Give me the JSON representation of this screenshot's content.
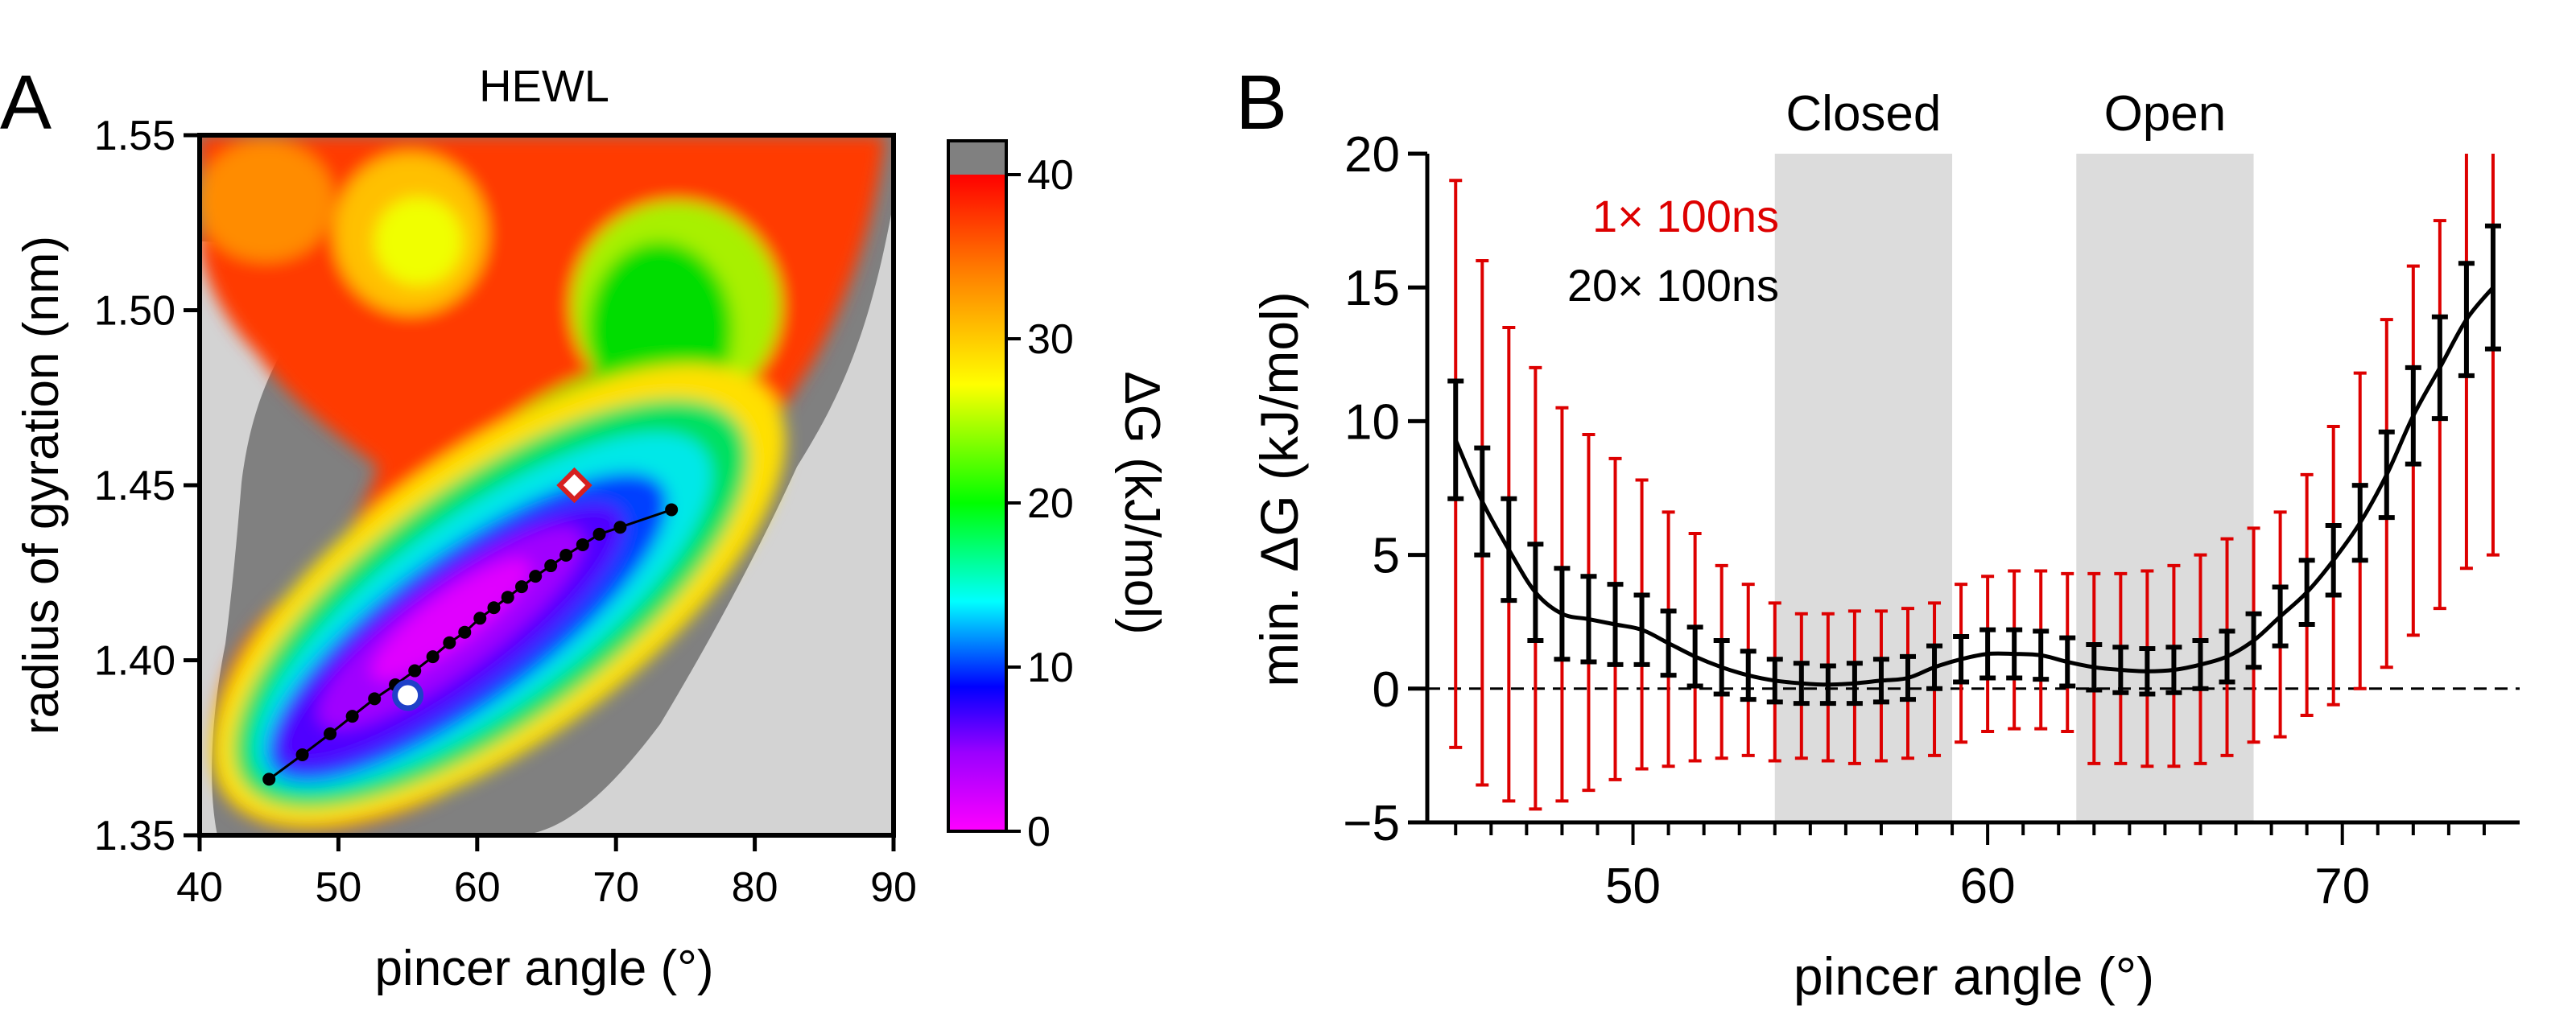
{
  "chart_data": [
    {
      "panel": "A",
      "type": "heatmap",
      "title": "HEWL",
      "xlabel": "pincer angle (°)",
      "ylabel": "radius of gyration (nm)",
      "xlim": [
        40,
        90
      ],
      "ylim": [
        1.35,
        1.55
      ],
      "xticks": [
        40,
        50,
        60,
        70,
        80,
        90
      ],
      "yticks": [
        1.35,
        1.4,
        1.45,
        1.5,
        1.55
      ],
      "ytick_labels": [
        "1.35",
        "1.40",
        "1.45",
        "1.50",
        "1.55"
      ],
      "colorbar": {
        "label": "ΔG (kJ/mol)",
        "min": 0,
        "max": 40,
        "ticks": [
          0,
          10,
          20,
          30,
          40
        ],
        "overflow_color": "#808080",
        "unsampled_color": "#d3d3d3"
      },
      "path": {
        "x": [
          45,
          47.4,
          49.4,
          51,
          52.6,
          54.1,
          55.5,
          56.8,
          58,
          59.1,
          60.2,
          61.2,
          62.2,
          63.2,
          64.2,
          65.3,
          66.4,
          67.6,
          68.8,
          70.3,
          74
        ],
        "y": [
          1.366,
          1.373,
          1.379,
          1.384,
          1.389,
          1.393,
          1.397,
          1.401,
          1.405,
          1.408,
          1.412,
          1.415,
          1.418,
          1.421,
          1.424,
          1.427,
          1.43,
          1.433,
          1.436,
          1.438,
          1.443
        ]
      },
      "markers": [
        {
          "name": "closed-state",
          "shape": "circle",
          "x": 55,
          "y": 1.39,
          "color": "#1e40c8"
        },
        {
          "name": "open-state",
          "shape": "diamond",
          "x": 67,
          "y": 1.45,
          "color": "#d62020"
        }
      ]
    },
    {
      "panel": "B",
      "type": "line",
      "xlabel": "pincer angle (°)",
      "ylabel": "min. ΔG (kJ/mol)",
      "xlim": [
        44.2,
        75
      ],
      "ylim": [
        -5,
        20
      ],
      "xticks": [
        50,
        60,
        70
      ],
      "yticks": [
        -5,
        0,
        5,
        10,
        15,
        20
      ],
      "ytick_labels": [
        "−5",
        "0",
        "5",
        "10",
        "15",
        "20"
      ],
      "regions": [
        {
          "label": "Closed",
          "x0": 54,
          "x1": 59
        },
        {
          "label": "Open",
          "x0": 62.5,
          "x1": 67.5
        }
      ],
      "reference_line_y": 0,
      "x": [
        45,
        45.75,
        46.5,
        47.25,
        48,
        48.75,
        49.5,
        50.25,
        51,
        51.75,
        52.5,
        53.25,
        54,
        54.75,
        55.5,
        56.25,
        57,
        57.75,
        58.5,
        59.25,
        60,
        60.75,
        61.5,
        62.25,
        63,
        63.75,
        64.5,
        65.25,
        66,
        66.75,
        67.5,
        68.25,
        69,
        69.75,
        70.5,
        71.25,
        72,
        72.75,
        73.5,
        74.25
      ],
      "series": [
        {
          "name": "1× 100ns",
          "color": "#dd0000",
          "err_low": [
            -2.2,
            -3.6,
            -4.2,
            -4.5,
            -4.2,
            -3.8,
            -3.4,
            -3.0,
            -2.9,
            -2.7,
            -2.6,
            -2.5,
            -2.7,
            -2.6,
            -2.7,
            -2.8,
            -2.7,
            -2.6,
            -2.5,
            -2.0,
            -1.6,
            -1.5,
            -1.5,
            -1.6,
            -2.8,
            -2.8,
            -2.9,
            -2.9,
            -2.8,
            -2.5,
            -2.0,
            -1.8,
            -1.0,
            -0.6,
            0.0,
            0.8,
            2.0,
            3.0,
            4.5,
            5.0
          ],
          "err_high": [
            19.0,
            16.0,
            13.5,
            12.0,
            10.5,
            9.5,
            8.6,
            7.8,
            6.6,
            5.8,
            4.6,
            3.9,
            3.2,
            2.8,
            2.8,
            2.9,
            2.9,
            3.0,
            3.2,
            3.9,
            4.2,
            4.4,
            4.4,
            4.3,
            4.3,
            4.3,
            4.4,
            4.6,
            5.0,
            5.6,
            6.0,
            6.6,
            8.0,
            9.8,
            11.8,
            13.8,
            15.8,
            17.5,
            20,
            20
          ]
        },
        {
          "name": "20× 100ns",
          "color": "#000000",
          "mean": [
            9.3,
            7.0,
            5.2,
            3.6,
            2.8,
            2.6,
            2.4,
            2.2,
            1.7,
            1.2,
            0.8,
            0.5,
            0.3,
            0.2,
            0.15,
            0.2,
            0.3,
            0.4,
            0.8,
            1.1,
            1.3,
            1.3,
            1.25,
            1.0,
            0.8,
            0.7,
            0.65,
            0.7,
            0.9,
            1.2,
            1.8,
            2.7,
            3.6,
            4.8,
            6.2,
            8.0,
            10.2,
            12.0,
            13.8,
            15.0
          ],
          "err": [
            2.2,
            2.0,
            1.9,
            1.8,
            1.7,
            1.6,
            1.5,
            1.3,
            1.2,
            1.1,
            1.0,
            0.9,
            0.8,
            0.75,
            0.7,
            0.75,
            0.8,
            0.8,
            0.8,
            0.85,
            0.9,
            0.9,
            0.9,
            0.9,
            0.85,
            0.85,
            0.85,
            0.85,
            0.9,
            0.95,
            1.0,
            1.1,
            1.2,
            1.3,
            1.4,
            1.6,
            1.8,
            1.9,
            2.1,
            2.3
          ]
        }
      ]
    }
  ]
}
